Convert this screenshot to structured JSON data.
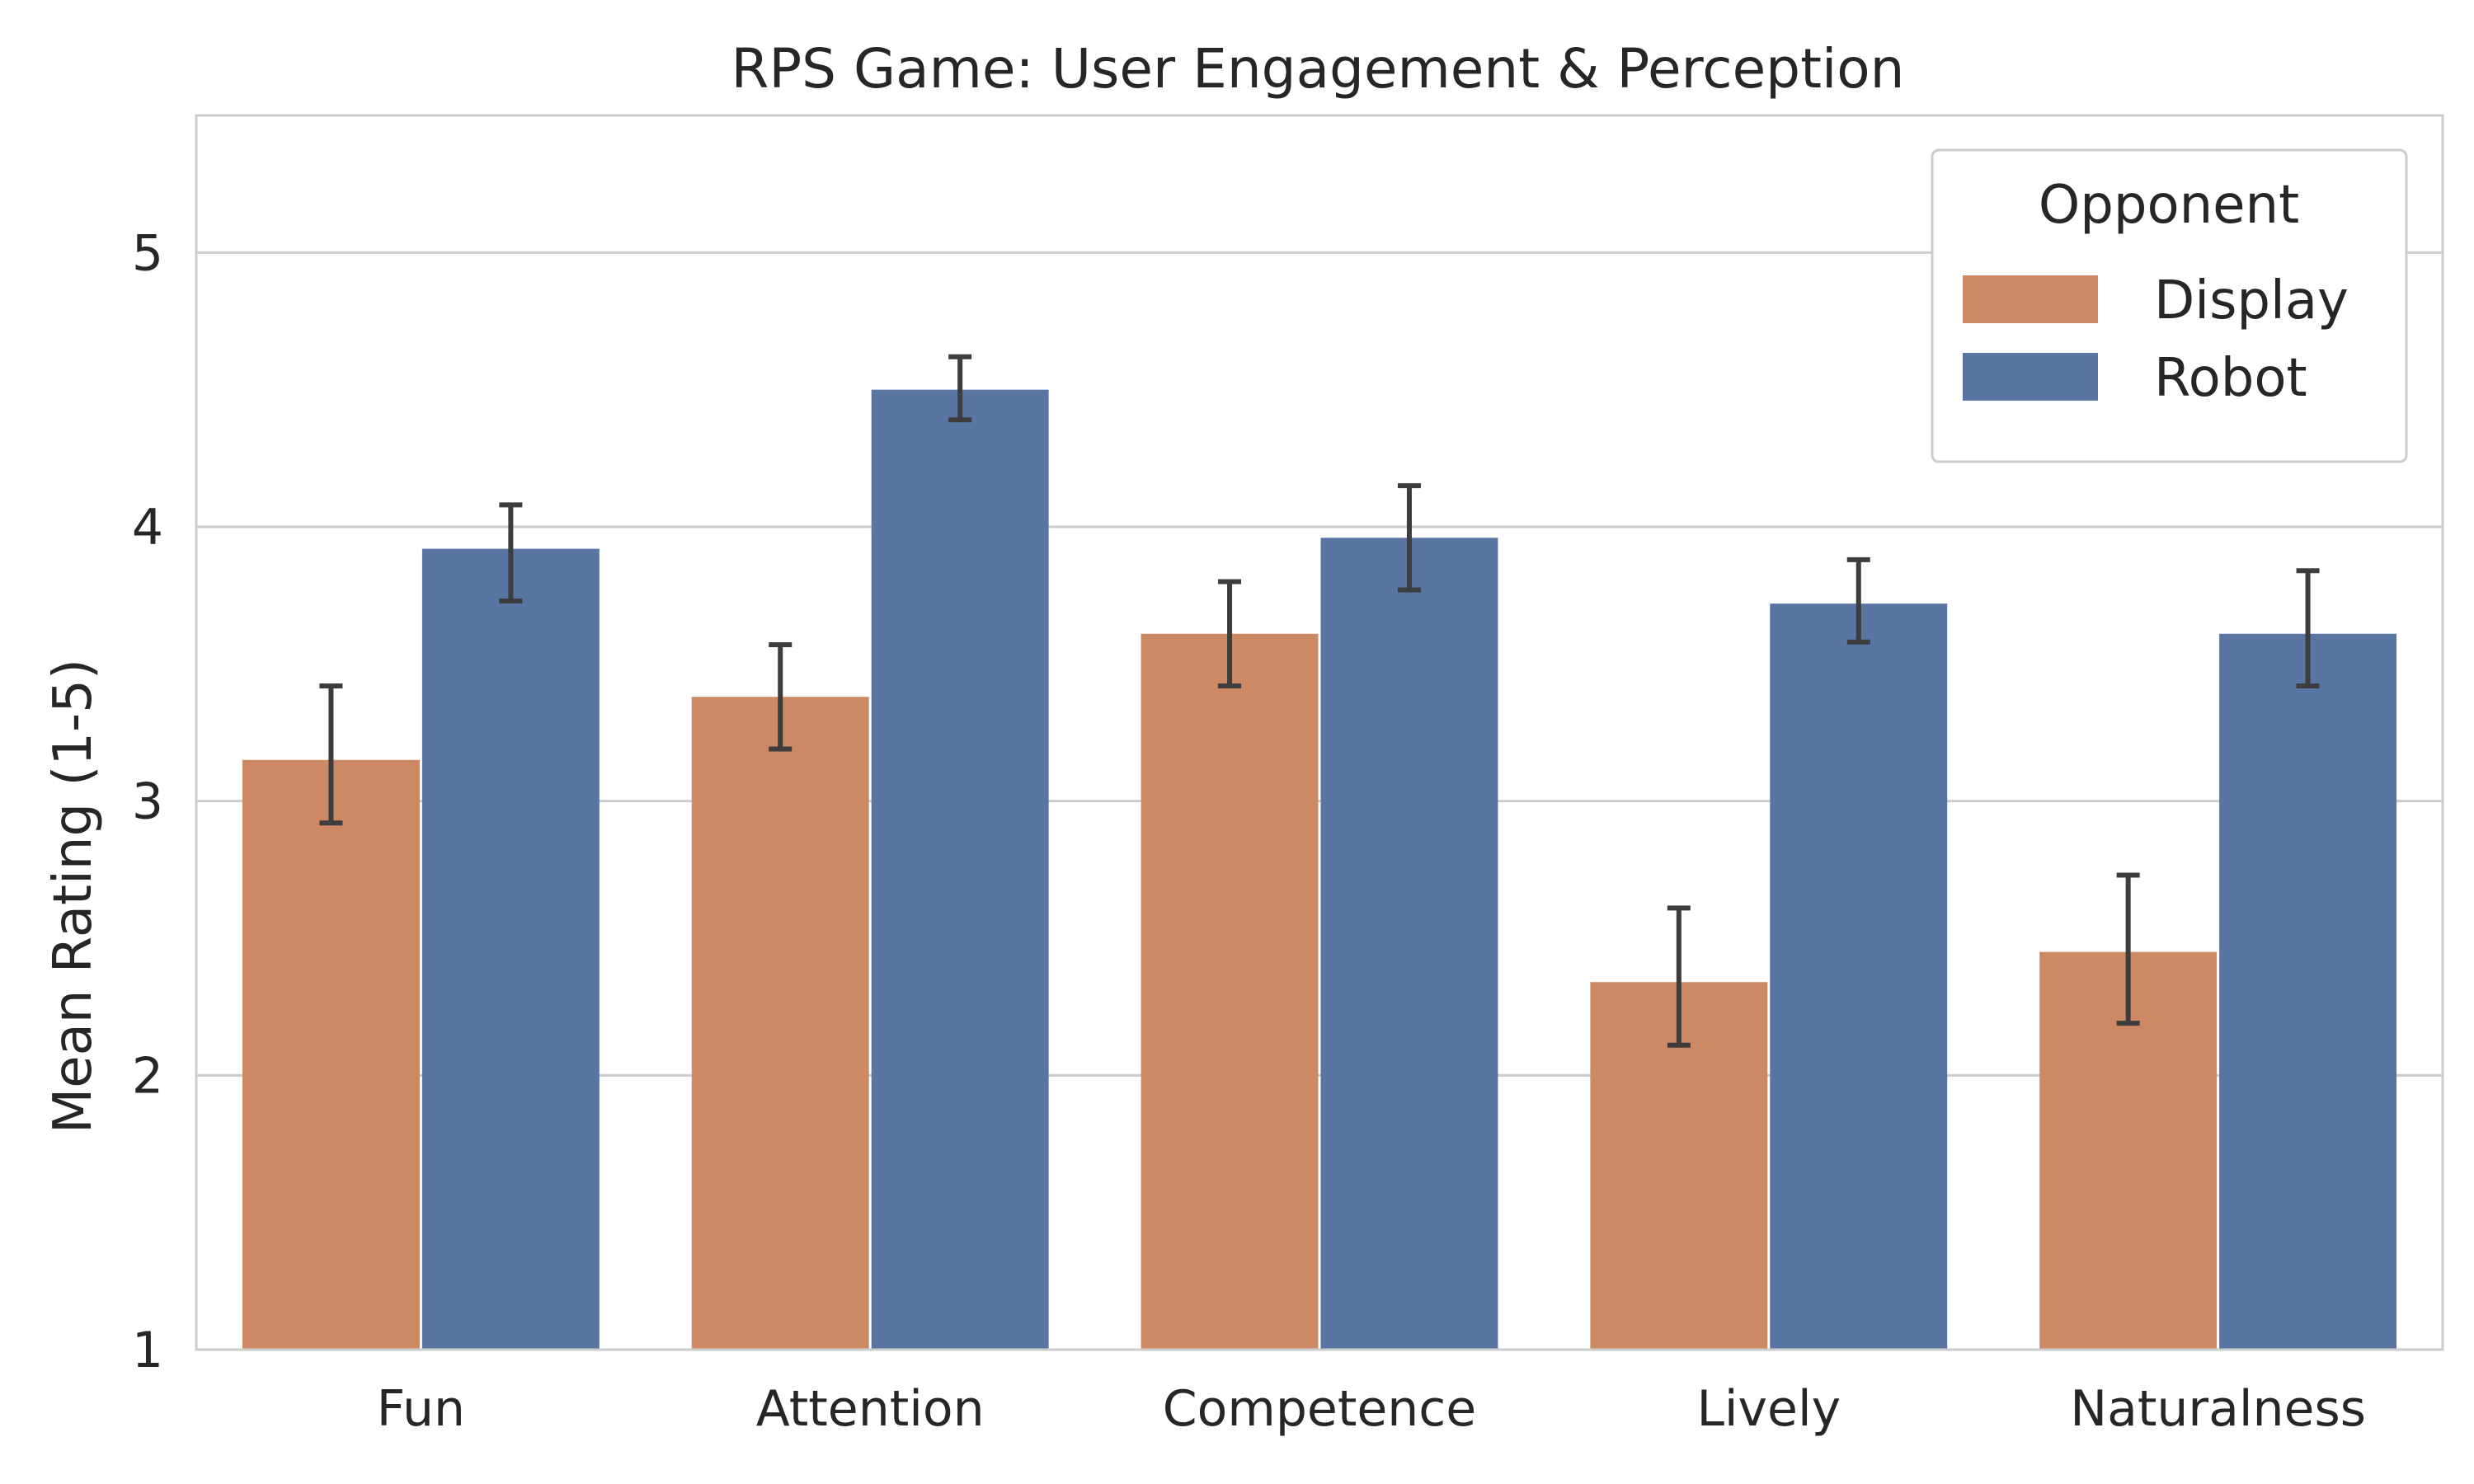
{
  "chart_data": {
    "type": "bar",
    "title": "RPS Game: User Engagement & Perception",
    "xlabel": "",
    "ylabel": "Mean Rating (1-5)",
    "ylim": [
      1,
      5.5
    ],
    "yticks": [
      1,
      2,
      3,
      4,
      5
    ],
    "grid": "horizontal",
    "categories": [
      "Fun",
      "Attention",
      "Competence",
      "Lively",
      "Naturalness"
    ],
    "legend": {
      "title": "Opponent",
      "placement": "top-right"
    },
    "series": [
      {
        "name": "Display",
        "color": "#cc8963",
        "values": [
          3.15,
          3.38,
          3.61,
          2.34,
          2.45
        ],
        "error_low": [
          2.92,
          3.19,
          3.42,
          2.11,
          2.19
        ],
        "error_high": [
          3.42,
          3.57,
          3.8,
          2.61,
          2.73
        ]
      },
      {
        "name": "Robot",
        "color": "#5975a4",
        "values": [
          3.92,
          4.5,
          3.96,
          3.72,
          3.61
        ],
        "error_low": [
          3.73,
          4.39,
          3.77,
          3.58,
          3.42
        ],
        "error_high": [
          4.08,
          4.62,
          4.15,
          3.88,
          3.84
        ]
      }
    ]
  }
}
